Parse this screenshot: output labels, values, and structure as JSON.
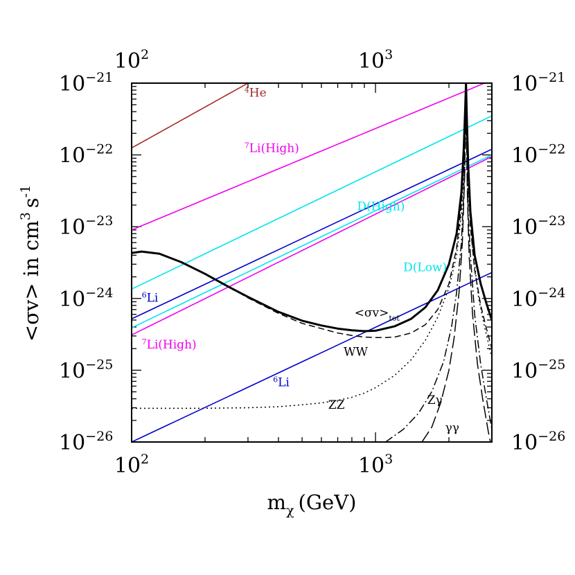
{
  "chart_data": {
    "type": "line",
    "title": "",
    "xlabel": "m",
    "xlabel_sub": "χ",
    "xlabel_unit": "(GeV)",
    "ylabel": "<σv> in cm",
    "ylabel_sup": "3",
    "ylabel_s": "s",
    "ylabel_s_sup": "-1",
    "x_scale": "log",
    "y_scale": "log",
    "xlim": [
      100,
      3000
    ],
    "ylim": [
      1e-26,
      1e-21
    ],
    "x_major_ticks": [
      {
        "value": 100,
        "base": "10",
        "exp": "2"
      },
      {
        "value": 1000,
        "base": "10",
        "exp": "3"
      }
    ],
    "y_major_ticks": [
      {
        "value": 1e-21,
        "base": "10",
        "exp": "−21"
      },
      {
        "value": 1e-22,
        "base": "10",
        "exp": "−22"
      },
      {
        "value": 1e-23,
        "base": "10",
        "exp": "−23"
      },
      {
        "value": 1e-24,
        "base": "10",
        "exp": "−24"
      },
      {
        "value": 1e-25,
        "base": "10",
        "exp": "−25"
      },
      {
        "value": 1e-26,
        "base": "10",
        "exp": "−26"
      }
    ],
    "grid": false,
    "legend": "none",
    "bounds": [
      {
        "name": "4He",
        "color": "#a52a2a",
        "x": [
          100,
          300
        ],
        "y": [
          1.25e-22,
          1e-21
        ]
      },
      {
        "name": "7Li(High) upper",
        "color": "#ee00ee",
        "x": [
          100,
          2800
        ],
        "y": [
          9e-24,
          1e-21
        ]
      },
      {
        "name": "D(High)",
        "color": "#00e5ee",
        "x": [
          100,
          3000
        ],
        "y": [
          1.35e-24,
          3.5e-22
        ]
      },
      {
        "name": "6Li upper",
        "color": "#0000cc",
        "x": [
          100,
          3000
        ],
        "y": [
          5.2e-25,
          1.2e-22
        ]
      },
      {
        "name": "D(Low)",
        "color": "#00e5ee",
        "x": [
          100,
          3000
        ],
        "y": [
          3.9e-25,
          1e-22
        ]
      },
      {
        "name": "7Li(High) lower",
        "color": "#ee00ee",
        "x": [
          100,
          3000
        ],
        "y": [
          3.1e-25,
          9.5e-23
        ]
      },
      {
        "name": "6Li lower",
        "color": "#0000cc",
        "x": [
          100,
          3000
        ],
        "y": [
          1e-26,
          2.3e-24
        ]
      }
    ],
    "cross_sections": [
      {
        "name": "tot",
        "style": "solid",
        "x": [
          100,
          110,
          130,
          160,
          200,
          250,
          300,
          400,
          500,
          600,
          700,
          800,
          900,
          1000,
          1200,
          1400,
          1600,
          1800,
          2000,
          2150,
          2250,
          2300,
          2330,
          2350,
          2370,
          2400,
          2450,
          2550,
          2700,
          2850,
          3000
        ],
        "y": [
          4.3e-24,
          4.5e-24,
          4.2e-24,
          3.2e-24,
          2.2e-24,
          1.45e-24,
          1.05e-24,
          6.5e-25,
          4.9e-25,
          4.2e-25,
          3.8e-25,
          3.6e-25,
          3.5e-25,
          3.55e-25,
          4.1e-25,
          5.2e-25,
          7.5e-25,
          1.3e-24,
          3e-24,
          8e-24,
          3e-23,
          1.2e-22,
          4e-22,
          1e-21,
          3e-22,
          7e-23,
          1.6e-23,
          4e-24,
          1.6e-24,
          8.5e-25,
          5e-25
        ]
      },
      {
        "name": "WW",
        "style": "dashed",
        "x": [
          100,
          110,
          130,
          160,
          200,
          250,
          300,
          400,
          500,
          600,
          700,
          800,
          900,
          1000,
          1100,
          1200,
          1400,
          1600,
          1800,
          2000,
          2150,
          2250,
          2300,
          2340,
          2360,
          2400,
          2450,
          2550,
          2700,
          2850,
          3000
        ],
        "y": [
          4.3e-24,
          4.5e-24,
          4.2e-24,
          3.2e-24,
          2.2e-24,
          1.45e-24,
          1.02e-24,
          6.2e-25,
          4.5e-25,
          3.8e-25,
          3.3e-25,
          3.05e-25,
          2.9e-25,
          2.85e-25,
          2.85e-25,
          2.9e-25,
          3.3e-25,
          4.3e-25,
          7e-25,
          1.6e-24,
          5e-24,
          2e-23,
          8e-23,
          6e-22,
          3e-22,
          5e-23,
          1e-23,
          2.5e-24,
          8e-25,
          3.8e-25,
          2e-25
        ]
      },
      {
        "name": "ZZ",
        "style": "dotted",
        "x": [
          100,
          150,
          200,
          300,
          400,
          500,
          600,
          700,
          800,
          900,
          1000,
          1200,
          1400,
          1600,
          1800,
          2000,
          2150,
          2250,
          2300,
          2340,
          2360,
          2400,
          2500,
          2650,
          2800,
          3000
        ],
        "y": [
          2.95e-26,
          2.95e-26,
          2.95e-26,
          3e-26,
          3.1e-26,
          3.3e-26,
          3.5e-26,
          3.8e-26,
          4.2e-26,
          4.8e-26,
          5.7e-26,
          8.5e-26,
          1.4e-25,
          2.6e-25,
          5.5e-25,
          1.4e-24,
          4e-24,
          1.5e-23,
          6e-23,
          4e-22,
          2e-22,
          3e-23,
          5e-24,
          1e-24,
          4e-25,
          1.5e-25
        ]
      },
      {
        "name": "Zγ",
        "style": "dashdot",
        "x": [
          1100,
          1300,
          1500,
          1700,
          1900,
          2050,
          2150,
          2250,
          2300,
          2340,
          2360,
          2400,
          2450,
          2550,
          2700,
          2850,
          3000
        ],
        "y": [
          1e-26,
          1.5e-26,
          2.5e-26,
          5e-26,
          1.3e-25,
          4e-25,
          1.2e-24,
          6e-24,
          3e-23,
          3e-22,
          1.5e-22,
          1.5e-23,
          4e-24,
          6e-25,
          1.2e-25,
          4e-26,
          1.5e-26
        ]
      },
      {
        "name": "γγ",
        "style": "longdash",
        "x": [
          1550,
          1700,
          1850,
          2000,
          2100,
          2200,
          2270,
          2320,
          2345,
          2360,
          2380,
          2420,
          2500,
          2620,
          2750,
          2900,
          3000
        ],
        "y": [
          1e-26,
          1.6e-26,
          3.5e-26,
          1e-25,
          2.8e-25,
          1.2e-24,
          6e-24,
          5e-23,
          4e-22,
          2e-22,
          3e-23,
          4e-24,
          6e-25,
          1.2e-25,
          4e-26,
          1.4e-26,
          8e-27
        ]
      }
    ],
    "labels": [
      {
        "key": "he4",
        "sup": "4",
        "text": "He",
        "color": "#a52a2a",
        "x": 290,
        "y": 6.5e-22
      },
      {
        "key": "li7_high_upper",
        "sup": "7",
        "text": "Li(High)",
        "color": "#ee00ee",
        "x": 290,
        "y": 1.1e-22
      },
      {
        "key": "d_high",
        "sup": "",
        "text": "D(High)",
        "color": "#00e5ee",
        "x": 840,
        "y": 1.7e-23
      },
      {
        "key": "d_low",
        "sup": "",
        "text": "D(Low)",
        "color": "#00e5ee",
        "x": 1300,
        "y": 2.4e-24
      },
      {
        "key": "li6_upper",
        "sup": "6",
        "text": "Li",
        "color": "#0000cc",
        "x": 110,
        "y": 9e-25
      },
      {
        "key": "li7_high_lower",
        "sup": "7",
        "text": "Li(High)",
        "color": "#ee00ee",
        "x": 110,
        "y": 2e-25
      },
      {
        "key": "li6_lower",
        "sup": "6",
        "text": "Li",
        "color": "#0000cc",
        "x": 380,
        "y": 6e-26
      },
      {
        "key": "ww",
        "sup": "",
        "text": "WW",
        "color": "#000000",
        "x": 740,
        "y": 1.6e-25
      },
      {
        "key": "zz",
        "sup": "",
        "text": "ZZ",
        "color": "#000000",
        "x": 640,
        "y": 2.9e-26
      },
      {
        "key": "zgamma",
        "sup": "",
        "text": "Zγ",
        "color": "#000000",
        "x": 1630,
        "y": 3.4e-26
      },
      {
        "key": "gammagamma",
        "sup": "",
        "text": "γγ",
        "color": "#000000",
        "x": 1930,
        "y": 1.4e-26
      },
      {
        "key": "sigma_tot",
        "sup": "",
        "text": "<σv>",
        "sub": "tot",
        "color": "#000000",
        "x": 820,
        "y": 5.6e-25
      }
    ]
  }
}
